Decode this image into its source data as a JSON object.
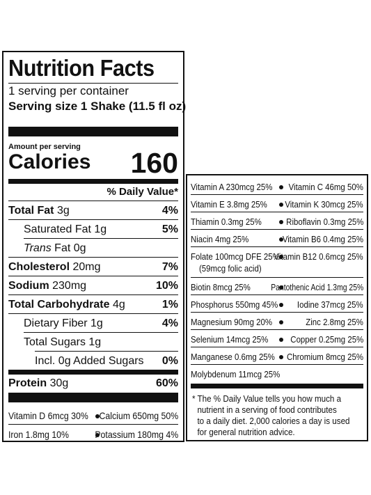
{
  "title": "Nutrition Facts",
  "servings_per_container": "1 serving per container",
  "serving_size": "Serving size 1 Shake (11.5 fl oz)",
  "amount_per_serving": "Amount per serving",
  "calories_label": "Calories",
  "calories_value": "160",
  "daily_value_header": "% Daily Value*",
  "nutrients": [
    {
      "name": "Total Fat",
      "amount": "3g",
      "dv": "4%"
    },
    {
      "name": "Saturated Fat",
      "amount": "1g",
      "dv": "5%"
    },
    {
      "name": "Trans",
      "amount": "Fat 0g",
      "dv": ""
    },
    {
      "name": "Cholesterol",
      "amount": "20mg",
      "dv": "7%"
    },
    {
      "name": "Sodium",
      "amount": "230mg",
      "dv": "10%"
    },
    {
      "name": "Total Carbohydrate",
      "amount": "4g",
      "dv": "1%"
    },
    {
      "name": "Dietary Fiber",
      "amount": "1g",
      "dv": "4%"
    },
    {
      "name": "Total Sugars",
      "amount": "1g",
      "dv": ""
    },
    {
      "name": "Incl. 0g Added Sugars",
      "amount": "",
      "dv": "0%"
    },
    {
      "name": "Protein",
      "amount": "30g",
      "dv": "60%"
    }
  ],
  "left_vitamins": [
    {
      "left": "Vitamin D 6mcg 30%",
      "right": "Calcium 650mg 50%"
    },
    {
      "left": "Iron 1.8mg 10%",
      "right": "Potassium 180mg 4%"
    }
  ],
  "right_vitamins": [
    {
      "left": "Vitamin A 230mcg 25%",
      "right": "Vitamin C 46mg 50%"
    },
    {
      "left": "Vitamin E 3.8mg 25%",
      "right": "Vitamin K 30mcg 25%"
    },
    {
      "left": "Thiamin 0.3mg 25%",
      "right": "Riboflavin 0.3mg 25%"
    },
    {
      "left": "Niacin 4mg 25%",
      "right": "Vitamin B6 0.4mg 25%"
    },
    {
      "left": "Folate 100mcg DFE 25%",
      "left2": "(59mcg folic acid)",
      "right": "Vitamin B12 0.6mcg 25%"
    },
    {
      "left": "Biotin 8mcg 25%",
      "right": "Pantothenic Acid 1.3mg 25%"
    },
    {
      "left": "Phosphorus 550mg 45%",
      "right": "Iodine 37mcg 25%"
    },
    {
      "left": "Magnesium 90mg 20%",
      "right": "Zinc 2.8mg 25%"
    },
    {
      "left": "Selenium 14mcg 25%",
      "right": "Copper 0.25mg 25%"
    },
    {
      "left": "Manganese 0.6mg 25%",
      "right": "Chromium 8mcg 25%"
    },
    {
      "left": "Molybdenum 11mcg 25%",
      "right": ""
    }
  ],
  "footnote": [
    "* The % Daily Value tells you how much a",
    "nutrient in a serving of food contributes",
    "to a daily diet. 2,000 calories a day is used",
    "for general nutrition advice."
  ]
}
